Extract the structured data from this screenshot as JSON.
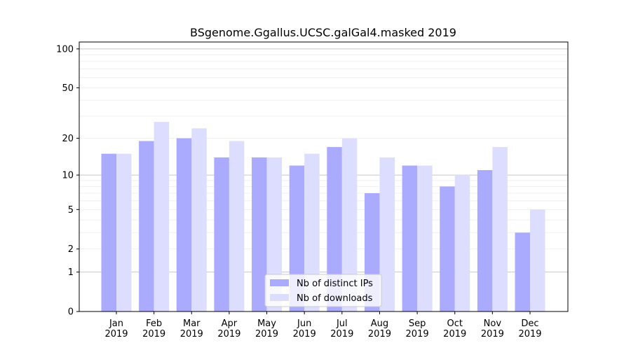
{
  "chart_data": {
    "type": "bar",
    "title": "BSgenome.Ggallus.UCSC.galGal4.masked 2019",
    "xlabel": "",
    "ylabel": "",
    "yscale": "log10(y+1)",
    "ylim": [
      0,
      113
    ],
    "yticks": [
      0,
      1,
      2,
      5,
      10,
      20,
      50,
      100
    ],
    "categories": [
      "Jan\n2019",
      "Feb\n2019",
      "Mar\n2019",
      "Apr\n2019",
      "May\n2019",
      "Jun\n2019",
      "Jul\n2019",
      "Aug\n2019",
      "Sep\n2019",
      "Oct\n2019",
      "Nov\n2019",
      "Dec\n2019"
    ],
    "series": [
      {
        "name": "Nb of distinct IPs",
        "color": "#aaaaff",
        "values": [
          15,
          19,
          20,
          14,
          14,
          12,
          17,
          7,
          12,
          8,
          11,
          3
        ]
      },
      {
        "name": "Nb of downloads",
        "color": "#ddddff",
        "values": [
          15,
          27,
          24,
          19,
          14,
          15,
          20,
          14,
          12,
          10,
          17,
          5
        ]
      }
    ],
    "legend_position": "lower-center",
    "grid": true
  }
}
